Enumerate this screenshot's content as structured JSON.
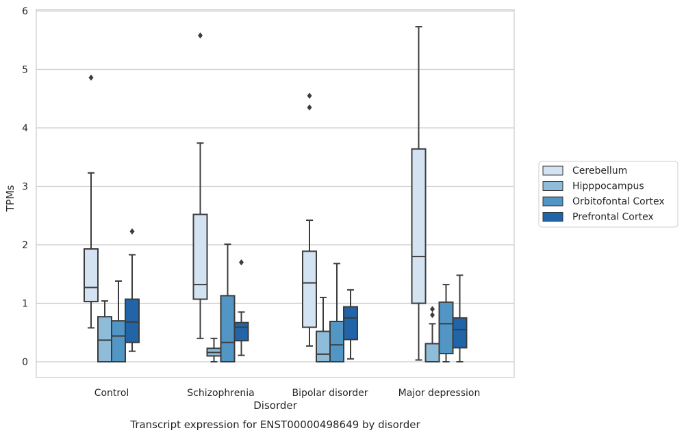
{
  "chart_data": {
    "type": "box",
    "caption": "Transcript expression for ENST00000498649 by disorder",
    "xlabel": "Disorder",
    "ylabel": "TPMs",
    "ylim": [
      -0.27,
      6.02
    ],
    "yticks": [
      0,
      1,
      2,
      3,
      4,
      5,
      6
    ],
    "grid": "horizontal",
    "legend_placement": "right, outside plot",
    "categories": [
      "Control",
      "Schizophrenia",
      "Bipolar disorder",
      "Major depression"
    ],
    "series": [
      {
        "name": "Cerebellum",
        "color": "#d4e3f2",
        "boxes": [
          {
            "whislo": 0.58,
            "q1": 1.03,
            "med": 1.27,
            "q3": 1.93,
            "whishi": 3.23,
            "fliers": [
              4.86
            ]
          },
          {
            "whislo": 0.4,
            "q1": 1.07,
            "med": 1.32,
            "q3": 2.52,
            "whishi": 3.74,
            "fliers": [
              5.58
            ]
          },
          {
            "whislo": 0.27,
            "q1": 0.59,
            "med": 1.35,
            "q3": 1.89,
            "whishi": 2.42,
            "fliers": [
              4.35,
              4.55
            ]
          },
          {
            "whislo": 0.03,
            "q1": 1.0,
            "med": 1.8,
            "q3": 3.64,
            "whishi": 5.73,
            "fliers": []
          }
        ]
      },
      {
        "name": "Hipppocampus",
        "color": "#8fbcd8",
        "boxes": [
          {
            "whislo": 0.0,
            "q1": 0.0,
            "med": 0.37,
            "q3": 0.77,
            "whishi": 1.04,
            "fliers": []
          },
          {
            "whislo": 0.0,
            "q1": 0.1,
            "med": 0.16,
            "q3": 0.23,
            "whishi": 0.4,
            "fliers": []
          },
          {
            "whislo": 0.0,
            "q1": 0.0,
            "med": 0.13,
            "q3": 0.52,
            "whishi": 1.1,
            "fliers": []
          },
          {
            "whislo": 0.0,
            "q1": 0.0,
            "med": 0.0,
            "q3": 0.31,
            "whishi": 0.65,
            "fliers": [
              0.8,
              0.9
            ]
          }
        ]
      },
      {
        "name": "Orbitofontal Cortex",
        "color": "#5296c5",
        "boxes": [
          {
            "whislo": 0.0,
            "q1": 0.0,
            "med": 0.44,
            "q3": 0.7,
            "whishi": 1.38,
            "fliers": []
          },
          {
            "whislo": 0.0,
            "q1": 0.0,
            "med": 0.33,
            "q3": 1.13,
            "whishi": 2.01,
            "fliers": []
          },
          {
            "whislo": 0.0,
            "q1": 0.0,
            "med": 0.29,
            "q3": 0.69,
            "whishi": 1.68,
            "fliers": []
          },
          {
            "whislo": 0.0,
            "q1": 0.14,
            "med": 0.65,
            "q3": 1.02,
            "whishi": 1.32,
            "fliers": []
          }
        ]
      },
      {
        "name": "Prefrontal Cortex",
        "color": "#2164a8",
        "boxes": [
          {
            "whislo": 0.18,
            "q1": 0.33,
            "med": 0.68,
            "q3": 1.07,
            "whishi": 1.83,
            "fliers": [
              2.23
            ]
          },
          {
            "whislo": 0.11,
            "q1": 0.36,
            "med": 0.59,
            "q3": 0.67,
            "whishi": 0.85,
            "fliers": [
              1.7
            ]
          },
          {
            "whislo": 0.05,
            "q1": 0.38,
            "med": 0.75,
            "q3": 0.94,
            "whishi": 1.23,
            "fliers": []
          },
          {
            "whislo": 0.0,
            "q1": 0.24,
            "med": 0.55,
            "q3": 0.75,
            "whishi": 1.48,
            "fliers": []
          }
        ]
      }
    ]
  }
}
